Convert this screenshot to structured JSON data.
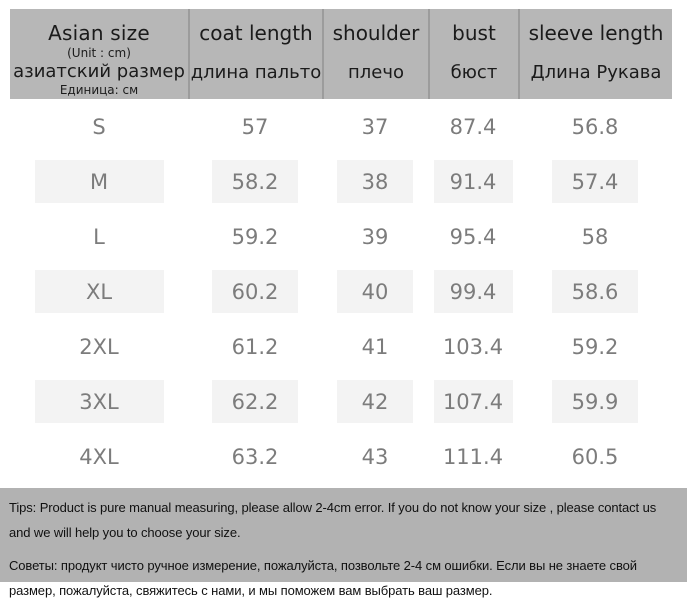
{
  "table": {
    "header": {
      "size": {
        "en": "Asian size",
        "unit_en": "(Unit : cm)",
        "ru": "азиатский размер",
        "unit_ru": "Единица: см"
      },
      "columns": [
        {
          "en": "coat length",
          "ru": "длина пальто"
        },
        {
          "en": "shoulder",
          "ru": "плечо"
        },
        {
          "en": "bust",
          "ru": "бюст"
        },
        {
          "en": "sleeve length",
          "ru": "Длина Рукава"
        }
      ]
    },
    "rows": [
      {
        "size": "S",
        "coat_length": "57",
        "shoulder": "37",
        "bust": "87.4",
        "sleeve_length": "56.8"
      },
      {
        "size": "M",
        "coat_length": "58.2",
        "shoulder": "38",
        "bust": "91.4",
        "sleeve_length": "57.4"
      },
      {
        "size": "L",
        "coat_length": "59.2",
        "shoulder": "39",
        "bust": "95.4",
        "sleeve_length": "58"
      },
      {
        "size": "XL",
        "coat_length": "60.2",
        "shoulder": "40",
        "bust": "99.4",
        "sleeve_length": "58.6"
      },
      {
        "size": "2XL",
        "coat_length": "61.2",
        "shoulder": "41",
        "bust": "103.4",
        "sleeve_length": "59.2"
      },
      {
        "size": "3XL",
        "coat_length": "62.2",
        "shoulder": "42",
        "bust": "107.4",
        "sleeve_length": "59.9"
      },
      {
        "size": "4XL",
        "coat_length": "63.2",
        "shoulder": "43",
        "bust": "111.4",
        "sleeve_length": "60.5"
      }
    ]
  },
  "tips": {
    "en": "Tips: Product is pure manual measuring, please allow 2-4cm error. If you do not know your size , please contact us and we will help you to choose your size.",
    "ru": "Советы: продукт чисто ручное измерение, пожалуйста, позвольте 2-4 см ошибки. Если вы не знаете свой размер, пожалуйста, свяжитесь с нами, и мы поможем вам выбрать ваш размер."
  },
  "colors": {
    "header_bg": "#b7b7b7",
    "header_divider": "#9c9c9c",
    "header_text": "#1b1b1b",
    "body_text": "#7c7c7c",
    "shaded_cell_bg": "#f3f3f3",
    "tips_bg": "#b2b2b2",
    "tips_text": "#111111"
  }
}
